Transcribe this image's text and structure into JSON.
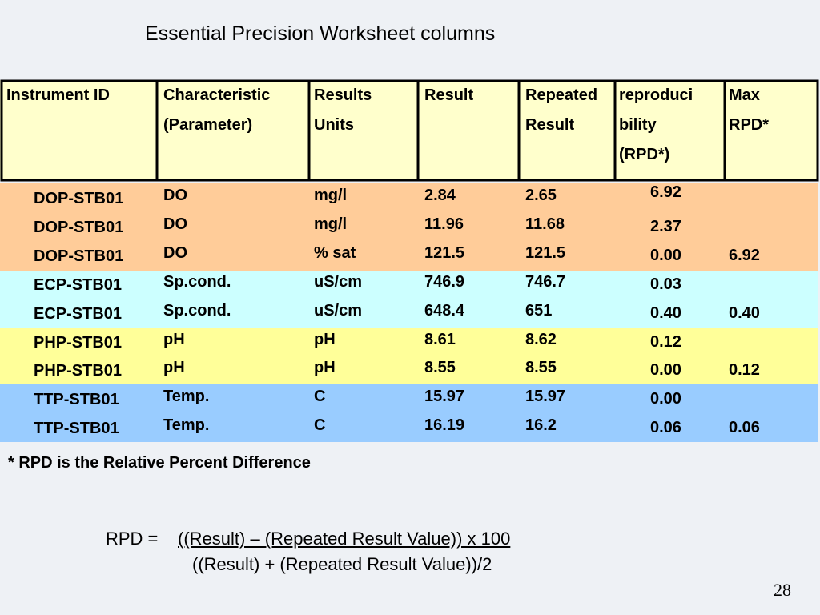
{
  "title": "Essential Precision Worksheet columns",
  "table": {
    "header": [
      [
        "Instrument ID"
      ],
      [
        "Characteristic",
        "(Parameter)"
      ],
      [
        "Results",
        "Units"
      ],
      [
        "Result"
      ],
      [
        "Repeated",
        "Result"
      ],
      [
        "reproduci",
        "bility",
        "(RPD*)"
      ],
      [
        "Max",
        "RPD*"
      ]
    ],
    "rows": [
      [
        "DOP-STB01",
        "DO",
        "mg/l",
        "2.84",
        "2.65",
        "6.92",
        null
      ],
      [
        "DOP-STB01",
        "DO",
        "mg/l",
        "11.96",
        "11.68",
        "2.37",
        null
      ],
      [
        "DOP-STB01",
        "DO",
        "% sat",
        "121.5",
        "121.5",
        "0.00",
        "6.92"
      ],
      [
        "ECP-STB01",
        "Sp.cond.",
        "uS/cm",
        "746.9",
        "746.7",
        "0.03",
        null
      ],
      [
        "ECP-STB01",
        "Sp.cond.",
        "uS/cm",
        "648.4",
        "651",
        "0.40",
        "0.40"
      ],
      [
        "PHP-STB01",
        "pH",
        "pH",
        "8.61",
        "8.62",
        "0.12",
        null
      ],
      [
        "PHP-STB01",
        "pH",
        "pH",
        "8.55",
        "8.55",
        "0.00",
        "0.12"
      ],
      [
        "TTP-STB01",
        "Temp.",
        "C",
        "15.97",
        "15.97",
        "0.00",
        null
      ],
      [
        "TTP-STB01",
        "Temp.",
        "C",
        "16.19",
        "16.2",
        "0.06",
        "0.06"
      ]
    ]
  },
  "footnote": "* RPD is the Relative Percent Difference",
  "formula": {
    "lhs": "RPD = ",
    "numerator": "((Result) – (Repeated Result Value)) x 100",
    "denominator": "((Result) + (Repeated Result Value))/2"
  },
  "page_number": "28"
}
